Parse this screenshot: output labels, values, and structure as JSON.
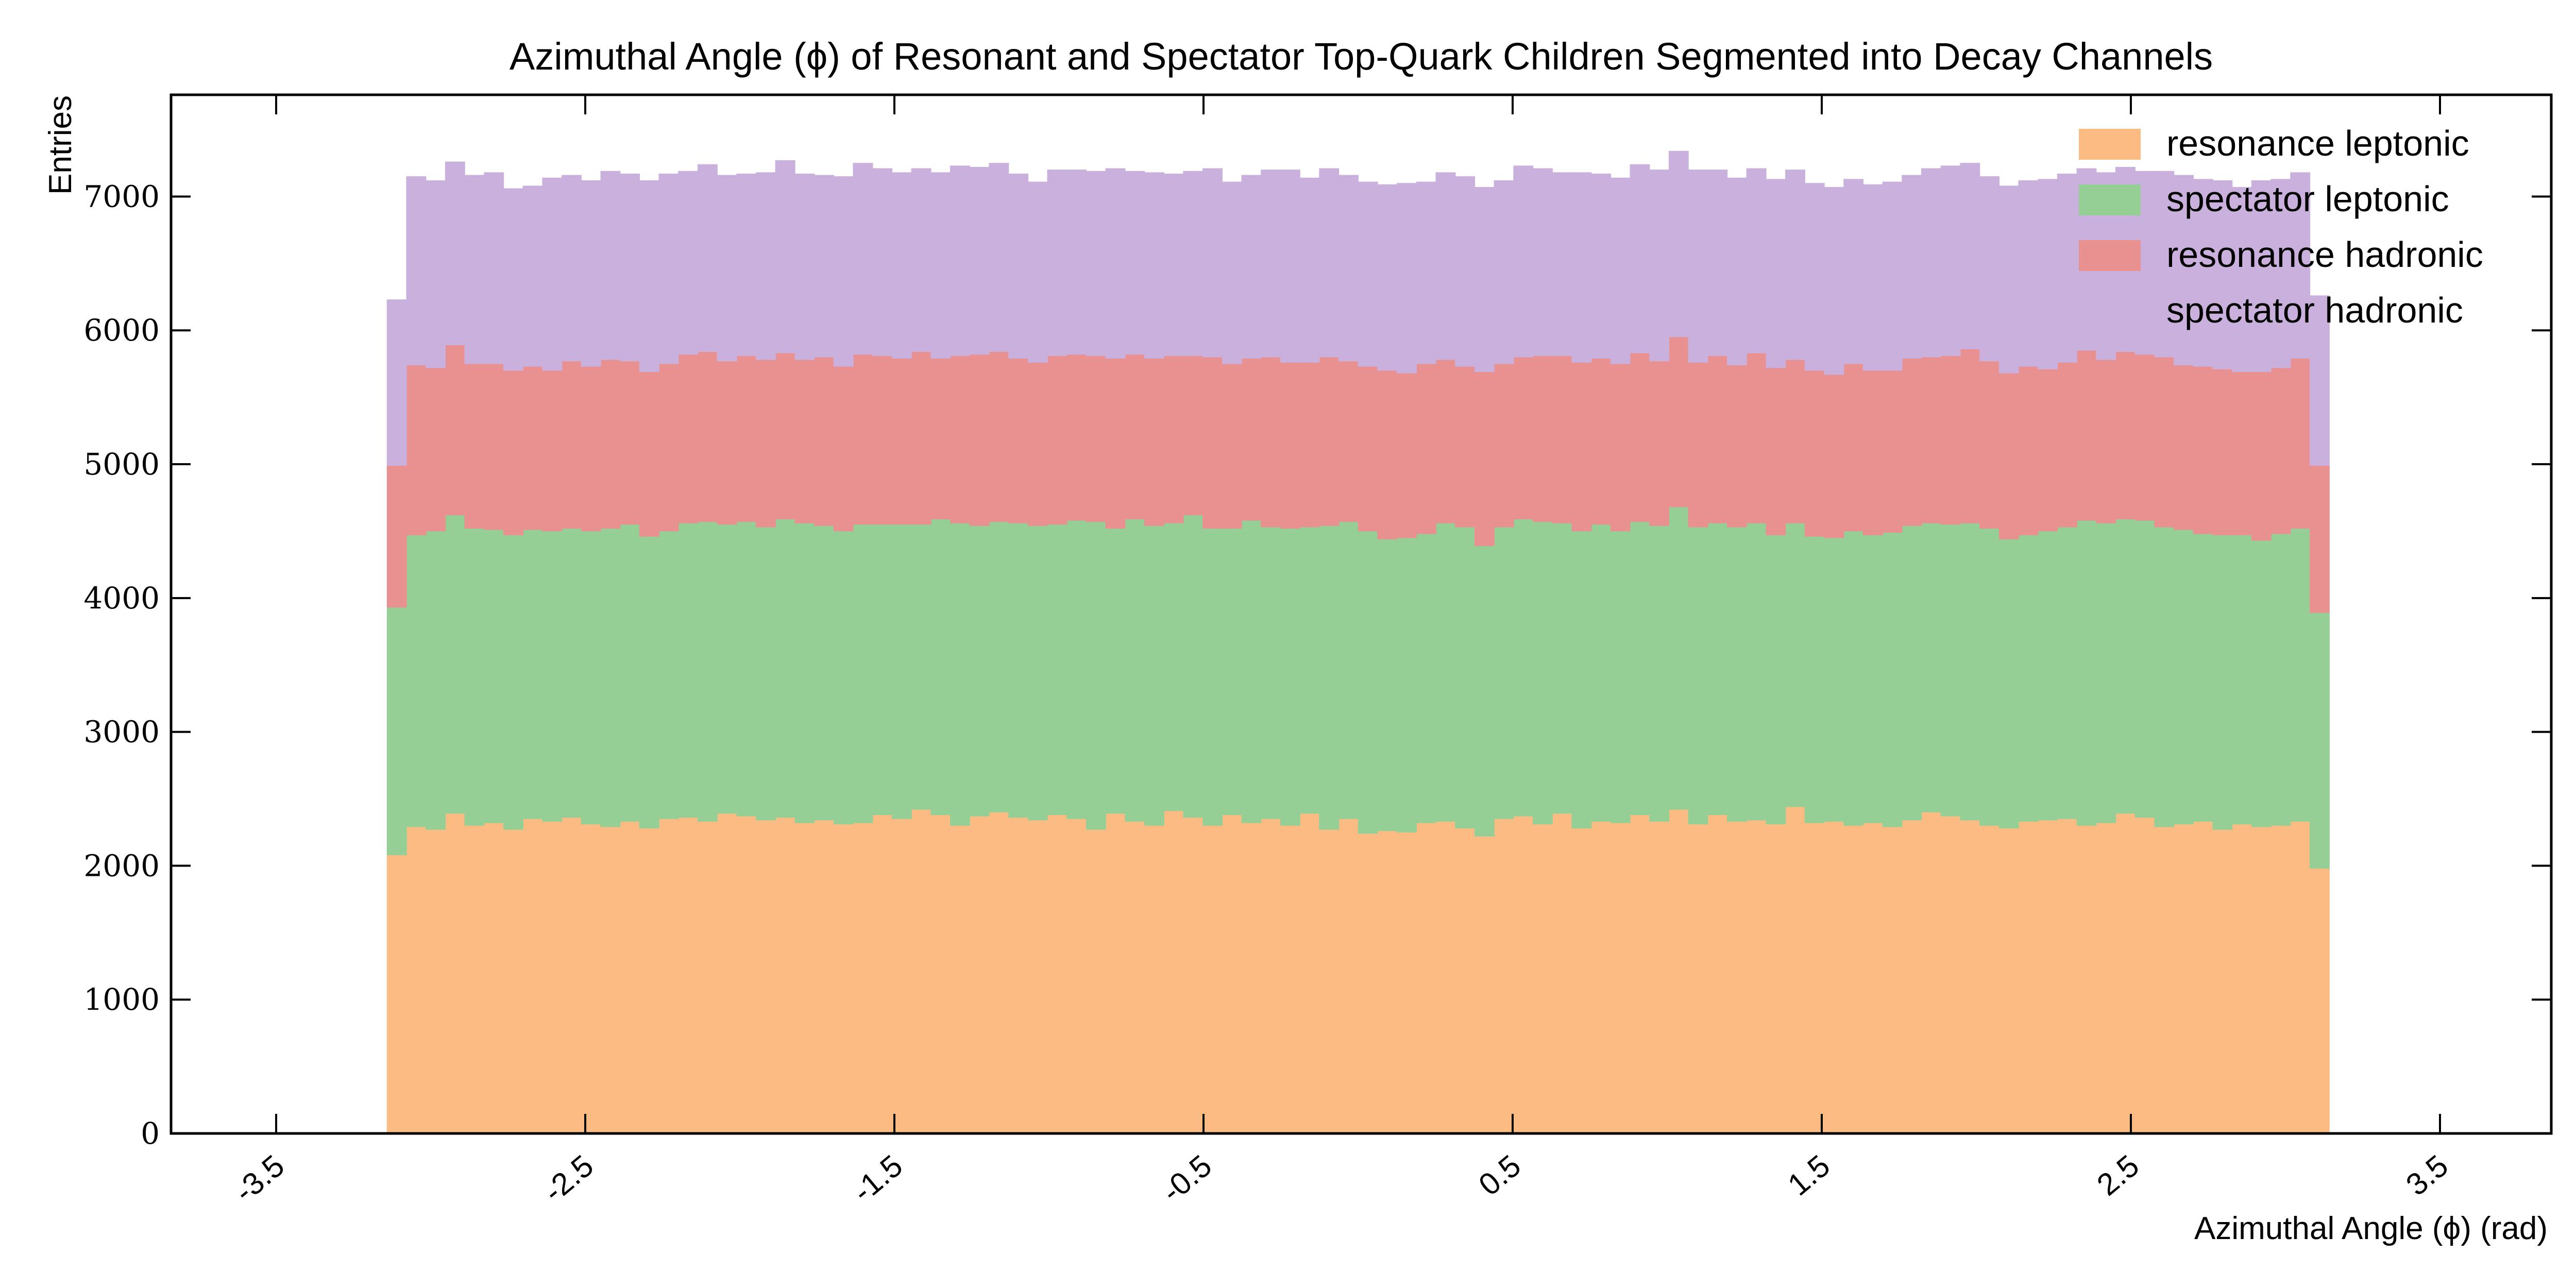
{
  "chart_data": {
    "type": "stacked_histogram",
    "title": "Azimuthal Angle (ϕ) of Resonant and Spectator Top-Quark Children Segmented into Decay Channels",
    "x_label": "Azimuthal Angle (ϕ) (rad)",
    "y_label": "Entries",
    "xlim": [
      -3.84,
      3.86
    ],
    "ylim": [
      0,
      7760
    ],
    "xticks": [
      -3.5,
      -2.5,
      -1.5,
      -0.5,
      0.5,
      1.5,
      2.5,
      3.5
    ],
    "yticks": [
      0,
      1000,
      2000,
      3000,
      4000,
      5000,
      6000,
      7000
    ],
    "legend": "upper right",
    "bins": [
      -3.1416,
      -3.0788,
      -3.0159,
      -2.9531,
      -2.8903,
      -2.8274,
      -2.7646,
      -2.7018,
      -2.6389,
      -2.5761,
      -2.5133,
      -2.4504,
      -2.3876,
      -2.3248,
      -2.2619,
      -2.1991,
      -2.1363,
      -2.0735,
      -2.0106,
      -1.9478,
      -1.885,
      -1.8221,
      -1.7593,
      -1.6965,
      -1.6336,
      -1.5708,
      -1.508,
      -1.4451,
      -1.3823,
      -1.3195,
      -1.2566,
      -1.1938,
      -1.131,
      -1.0681,
      -1.0053,
      -0.9425,
      -0.8796,
      -0.8168,
      -0.754,
      -0.6912,
      -0.6283,
      -0.5655,
      -0.5027,
      -0.4398,
      -0.377,
      -0.3142,
      -0.2513,
      -0.1885,
      -0.1257,
      -0.0628,
      0,
      0.0628,
      0.1257,
      0.1885,
      0.2513,
      0.3142,
      0.377,
      0.4398,
      0.5027,
      0.5655,
      0.6283,
      0.6912,
      0.754,
      0.8168,
      0.8796,
      0.9425,
      1.0053,
      1.0681,
      1.131,
      1.1938,
      1.2566,
      1.3195,
      1.3823,
      1.4451,
      1.508,
      1.5708,
      1.6336,
      1.6965,
      1.7593,
      1.8221,
      1.885,
      1.9478,
      2.0106,
      2.0735,
      2.1363,
      2.1991,
      2.2619,
      2.3248,
      2.3876,
      2.4504,
      2.5133,
      2.5761,
      2.6389,
      2.7018,
      2.7646,
      2.8274,
      2.8903,
      2.9531,
      3.0159,
      3.0788,
      3.1416
    ],
    "series": [
      {
        "name": "resonance leptonic",
        "color": "#fdbb84",
        "values": [
          2080,
          2290,
          2270,
          2390,
          2300,
          2320,
          2270,
          2350,
          2330,
          2360,
          2310,
          2290,
          2330,
          2280,
          2350,
          2360,
          2330,
          2390,
          2370,
          2340,
          2360,
          2320,
          2340,
          2310,
          2320,
          2380,
          2350,
          2420,
          2380,
          2300,
          2370,
          2400,
          2360,
          2340,
          2380,
          2350,
          2270,
          2390,
          2330,
          2300,
          2410,
          2360,
          2300,
          2380,
          2320,
          2350,
          2300,
          2390,
          2270,
          2350,
          2240,
          2260,
          2250,
          2320,
          2330,
          2280,
          2220,
          2350,
          2370,
          2310,
          2390,
          2280,
          2330,
          2320,
          2380,
          2330,
          2420,
          2310,
          2380,
          2330,
          2340,
          2310,
          2440,
          2320,
          2330,
          2300,
          2320,
          2290,
          2340,
          2400,
          2370,
          2340,
          2300,
          2280,
          2330,
          2340,
          2350,
          2300,
          2320,
          2390,
          2360,
          2290,
          2310,
          2330,
          2270,
          2310,
          2290,
          2300,
          2330,
          1980
        ]
      },
      {
        "name": "spectator leptonic",
        "color": "#95cf95",
        "values": [
          1850,
          2180,
          2230,
          2230,
          2220,
          2190,
          2200,
          2160,
          2170,
          2160,
          2190,
          2230,
          2220,
          2180,
          2150,
          2200,
          2240,
          2160,
          2200,
          2190,
          2230,
          2240,
          2200,
          2190,
          2230,
          2170,
          2200,
          2130,
          2210,
          2260,
          2170,
          2170,
          2200,
          2200,
          2170,
          2230,
          2300,
          2130,
          2260,
          2240,
          2150,
          2260,
          2220,
          2140,
          2260,
          2180,
          2220,
          2140,
          2270,
          2220,
          2260,
          2180,
          2200,
          2160,
          2230,
          2250,
          2170,
          2180,
          2220,
          2260,
          2170,
          2220,
          2220,
          2180,
          2190,
          2210,
          2260,
          2220,
          2180,
          2200,
          2220,
          2160,
          2120,
          2140,
          2120,
          2200,
          2150,
          2200,
          2200,
          2160,
          2180,
          2220,
          2220,
          2160,
          2140,
          2160,
          2180,
          2280,
          2240,
          2200,
          2220,
          2240,
          2200,
          2150,
          2200,
          2160,
          2140,
          2180,
          2190,
          1910
        ]
      },
      {
        "name": "resonance hadronic",
        "color": "#e99090",
        "values": [
          1060,
          1270,
          1220,
          1270,
          1230,
          1240,
          1230,
          1220,
          1200,
          1250,
          1230,
          1260,
          1220,
          1230,
          1250,
          1260,
          1270,
          1220,
          1240,
          1250,
          1240,
          1220,
          1260,
          1230,
          1270,
          1260,
          1240,
          1290,
          1200,
          1250,
          1280,
          1270,
          1230,
          1220,
          1260,
          1240,
          1240,
          1270,
          1230,
          1250,
          1250,
          1190,
          1280,
          1230,
          1210,
          1270,
          1240,
          1230,
          1260,
          1200,
          1230,
          1260,
          1230,
          1270,
          1220,
          1200,
          1300,
          1220,
          1210,
          1240,
          1250,
          1260,
          1240,
          1250,
          1260,
          1230,
          1270,
          1230,
          1250,
          1210,
          1270,
          1250,
          1220,
          1240,
          1220,
          1250,
          1230,
          1210,
          1250,
          1240,
          1260,
          1300,
          1250,
          1240,
          1260,
          1210,
          1230,
          1270,
          1220,
          1250,
          1240,
          1270,
          1230,
          1250,
          1240,
          1220,
          1260,
          1240,
          1270,
          1100
        ]
      },
      {
        "name": "spectator hadronic",
        "color": "#c9b0dd",
        "values": [
          1240,
          1410,
          1400,
          1370,
          1410,
          1430,
          1360,
          1350,
          1440,
          1390,
          1390,
          1410,
          1400,
          1430,
          1420,
          1370,
          1400,
          1390,
          1360,
          1400,
          1440,
          1390,
          1360,
          1420,
          1430,
          1400,
          1390,
          1370,
          1390,
          1420,
          1400,
          1410,
          1380,
          1350,
          1390,
          1380,
          1380,
          1420,
          1370,
          1390,
          1360,
          1380,
          1410,
          1360,
          1370,
          1400,
          1440,
          1380,
          1410,
          1390,
          1380,
          1390,
          1420,
          1360,
          1400,
          1420,
          1380,
          1370,
          1430,
          1400,
          1370,
          1420,
          1380,
          1390,
          1410,
          1430,
          1390,
          1440,
          1390,
          1400,
          1380,
          1410,
          1420,
          1400,
          1400,
          1380,
          1390,
          1410,
          1370,
          1410,
          1420,
          1390,
          1380,
          1400,
          1390,
          1420,
          1410,
          1360,
          1400,
          1380,
          1370,
          1390,
          1420,
          1400,
          1410,
          1380,
          1430,
          1410,
          1390,
          1270
        ]
      }
    ]
  }
}
